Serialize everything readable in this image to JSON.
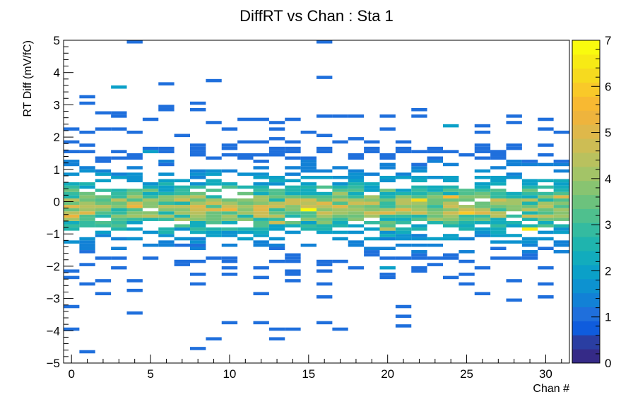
{
  "chart_data": {
    "type": "heatmap",
    "title": "DiffRT vs Chan : Sta 1",
    "xlabel": "Chan #",
    "ylabel": "RT Diff (mV/fC)",
    "xlim": [
      -0.5,
      31.5
    ],
    "ylim": [
      -5,
      5
    ],
    "x_ticks": [
      0,
      5,
      10,
      15,
      20,
      25,
      30
    ],
    "y_ticks": [
      -5,
      -4,
      -3,
      -2,
      -1,
      0,
      1,
      2,
      3,
      4,
      5
    ],
    "z_range": [
      0,
      7
    ],
    "z_ticks": [
      0,
      1,
      2,
      3,
      4,
      5,
      6,
      7
    ],
    "ybin_width": 0.1,
    "grid": false,
    "palette": [
      "#352a87",
      "#2a3ea2",
      "#0f5cdd",
      "#1f6fdc",
      "#1281d6",
      "#0d92d0",
      "#0ba0c8",
      "#12acbd",
      "#1fb4ae",
      "#34bba0",
      "#4fc08e",
      "#6cc27d",
      "#88c471",
      "#a3c467",
      "#b9c15e",
      "#cdbd54",
      "#dfb84a",
      "#eeb43d",
      "#f8b932",
      "#f9c929",
      "#f6da1f",
      "#f7ea15",
      "#f9fb0e"
    ],
    "band_profile": [
      {
        "y": -1.85,
        "w": 0.02
      },
      {
        "y": -1.75,
        "w": 0.03
      },
      {
        "y": -1.65,
        "w": 0.05
      },
      {
        "y": -1.55,
        "w": 0.07
      },
      {
        "y": -1.45,
        "w": 0.09
      },
      {
        "y": -1.35,
        "w": 0.12
      },
      {
        "y": -1.25,
        "w": 0.15
      },
      {
        "y": -1.15,
        "w": 0.2
      },
      {
        "y": -1.05,
        "w": 0.27
      },
      {
        "y": -0.95,
        "w": 0.35
      },
      {
        "y": -0.85,
        "w": 0.45
      },
      {
        "y": -0.75,
        "w": 0.55
      },
      {
        "y": -0.65,
        "w": 0.65
      },
      {
        "y": -0.55,
        "w": 0.75
      },
      {
        "y": -0.45,
        "w": 0.85
      },
      {
        "y": -0.35,
        "w": 0.95
      },
      {
        "y": -0.25,
        "w": 1.0
      },
      {
        "y": -0.15,
        "w": 1.0
      },
      {
        "y": -0.05,
        "w": 0.95
      },
      {
        "y": 0.05,
        "w": 0.9
      },
      {
        "y": 0.15,
        "w": 0.8
      },
      {
        "y": 0.25,
        "w": 0.7
      },
      {
        "y": 0.35,
        "w": 0.6
      },
      {
        "y": 0.45,
        "w": 0.5
      },
      {
        "y": 0.55,
        "w": 0.42
      },
      {
        "y": 0.65,
        "w": 0.34
      },
      {
        "y": 0.75,
        "w": 0.27
      },
      {
        "y": 0.85,
        "w": 0.21
      },
      {
        "y": 0.95,
        "w": 0.16
      },
      {
        "y": 1.05,
        "w": 0.12
      },
      {
        "y": 1.15,
        "w": 0.09
      },
      {
        "y": 1.25,
        "w": 0.07
      },
      {
        "y": 1.35,
        "w": 0.05
      },
      {
        "y": 1.45,
        "w": 0.04
      },
      {
        "y": 1.55,
        "w": 0.03
      },
      {
        "y": 1.65,
        "w": 0.02
      }
    ],
    "peak_cells": [
      {
        "x": 15,
        "y": -0.25,
        "z": 6.9
      },
      {
        "x": 29,
        "y": -0.85,
        "z": 6.5
      },
      {
        "x": 22,
        "y": 0.05,
        "z": 6.2
      },
      {
        "x": 25,
        "y": -0.35,
        "z": 5.8
      },
      {
        "x": 24,
        "y": 0.15,
        "z": 5.6
      },
      {
        "x": 0,
        "y": -0.45,
        "z": 5.4
      },
      {
        "x": 4,
        "y": -0.15,
        "z": 5.2
      },
      {
        "x": 31,
        "y": 0.15,
        "z": 5.1
      },
      {
        "x": 8,
        "y": -0.15,
        "z": 5.0
      },
      {
        "x": 19,
        "y": -0.35,
        "z": 4.8
      },
      {
        "x": 13,
        "y": -0.65,
        "z": 4.6
      },
      {
        "x": 3,
        "y": 0.05,
        "z": 4.5
      },
      {
        "x": 27,
        "y": -0.35,
        "z": 4.4
      },
      {
        "x": 20,
        "y": -0.85,
        "z": 4.3
      },
      {
        "x": 17,
        "y": 0.25,
        "z": 4.2
      }
    ],
    "sparse_cells": [
      {
        "x": 4,
        "y": 4.95,
        "z": 1
      },
      {
        "x": 16,
        "y": 4.95,
        "z": 1
      },
      {
        "x": 16,
        "y": 3.85,
        "z": 1
      },
      {
        "x": 9,
        "y": 3.75,
        "z": 1
      },
      {
        "x": 6,
        "y": 3.65,
        "z": 1
      },
      {
        "x": 3,
        "y": 3.55,
        "z": 2
      },
      {
        "x": 1,
        "y": 3.25,
        "z": 1
      },
      {
        "x": 1,
        "y": 3.05,
        "z": 1
      },
      {
        "x": 8,
        "y": 3.05,
        "z": 1
      },
      {
        "x": 6,
        "y": 2.95,
        "z": 1
      },
      {
        "x": 6,
        "y": 2.85,
        "z": 1
      },
      {
        "x": 8,
        "y": 2.85,
        "z": 1
      },
      {
        "x": 22,
        "y": 2.85,
        "z": 1
      },
      {
        "x": 2,
        "y": 2.75,
        "z": 1
      },
      {
        "x": 3,
        "y": 2.75,
        "z": 1
      },
      {
        "x": 3,
        "y": 2.65,
        "z": 1
      },
      {
        "x": 16,
        "y": 2.65,
        "z": 1
      },
      {
        "x": 17,
        "y": 2.65,
        "z": 1
      },
      {
        "x": 18,
        "y": 2.65,
        "z": 1
      },
      {
        "x": 20,
        "y": 2.65,
        "z": 1
      },
      {
        "x": 22,
        "y": 2.65,
        "z": 1
      },
      {
        "x": 28,
        "y": 2.65,
        "z": 1
      },
      {
        "x": 5,
        "y": 2.55,
        "z": 1
      },
      {
        "x": 11,
        "y": 2.55,
        "z": 1
      },
      {
        "x": 12,
        "y": 2.55,
        "z": 1
      },
      {
        "x": 14,
        "y": 2.55,
        "z": 1
      },
      {
        "x": 30,
        "y": 2.55,
        "z": 1
      },
      {
        "x": 9,
        "y": 2.45,
        "z": 1
      },
      {
        "x": 13,
        "y": 2.45,
        "z": 1
      },
      {
        "x": 28,
        "y": 2.45,
        "z": 1
      },
      {
        "x": 24,
        "y": 2.35,
        "z": 2
      },
      {
        "x": 26,
        "y": 2.35,
        "z": 1
      },
      {
        "x": 0,
        "y": 2.25,
        "z": 1
      },
      {
        "x": 2,
        "y": 2.25,
        "z": 1
      },
      {
        "x": 3,
        "y": 2.25,
        "z": 1
      },
      {
        "x": 10,
        "y": 2.25,
        "z": 1
      },
      {
        "x": 13,
        "y": 2.25,
        "z": 1
      },
      {
        "x": 20,
        "y": 2.25,
        "z": 1
      },
      {
        "x": 30,
        "y": 2.25,
        "z": 1
      },
      {
        "x": 1,
        "y": 2.15,
        "z": 1
      },
      {
        "x": 4,
        "y": 2.15,
        "z": 1
      },
      {
        "x": 15,
        "y": 2.15,
        "z": 1
      },
      {
        "x": 26,
        "y": 2.15,
        "z": 1
      },
      {
        "x": 31,
        "y": 2.15,
        "z": 1
      },
      {
        "x": 7,
        "y": 2.05,
        "z": 1
      },
      {
        "x": 16,
        "y": 2.05,
        "z": 1
      },
      {
        "x": 13,
        "y": 1.95,
        "z": 1
      },
      {
        "x": 18,
        "y": 1.95,
        "z": 1
      },
      {
        "x": 0,
        "y": 1.85,
        "z": 1
      },
      {
        "x": 11,
        "y": 1.85,
        "z": 1
      },
      {
        "x": 12,
        "y": 1.85,
        "z": 1
      },
      {
        "x": 14,
        "y": 1.85,
        "z": 1
      },
      {
        "x": 17,
        "y": 1.85,
        "z": 1
      },
      {
        "x": 19,
        "y": 1.85,
        "z": 1
      },
      {
        "x": 21,
        "y": 1.85,
        "z": 1
      },
      {
        "x": 1,
        "y": 1.75,
        "z": 1
      },
      {
        "x": 8,
        "y": 1.75,
        "z": 1
      },
      {
        "x": 10,
        "y": 1.75,
        "z": 1
      },
      {
        "x": 26,
        "y": 1.75,
        "z": 1
      },
      {
        "x": 28,
        "y": 1.75,
        "z": 1
      },
      {
        "x": 30,
        "y": 1.75,
        "z": 1
      },
      {
        "x": 10,
        "y": 1.65,
        "z": 1
      },
      {
        "x": 23,
        "y": 1.65,
        "z": 1
      },
      {
        "x": 5,
        "y": 1.55,
        "z": 2
      },
      {
        "x": 0,
        "y": 1.55,
        "z": 1
      },
      {
        "x": 22,
        "y": 1.55,
        "z": 1
      },
      {
        "x": 27,
        "y": 1.55,
        "z": 1
      },
      {
        "x": 31,
        "y": 1.25,
        "z": 1
      },
      {
        "x": 29,
        "y": 1.25,
        "z": 1
      },
      {
        "x": 1,
        "y": -1.95,
        "z": 1
      },
      {
        "x": 7,
        "y": -1.95,
        "z": 1
      },
      {
        "x": 16,
        "y": -1.95,
        "z": 1
      },
      {
        "x": 23,
        "y": -1.95,
        "z": 1
      },
      {
        "x": 3,
        "y": -2.05,
        "z": 1
      },
      {
        "x": 10,
        "y": -2.05,
        "z": 1
      },
      {
        "x": 12,
        "y": -2.05,
        "z": 1
      },
      {
        "x": 18,
        "y": -2.05,
        "z": 1
      },
      {
        "x": 20,
        "y": -2.05,
        "z": 2
      },
      {
        "x": 22,
        "y": -2.05,
        "z": 1
      },
      {
        "x": 26,
        "y": -2.05,
        "z": 1
      },
      {
        "x": 30,
        "y": -2.05,
        "z": 1
      },
      {
        "x": 0,
        "y": -2.15,
        "z": 1
      },
      {
        "x": 14,
        "y": -2.15,
        "z": 1
      },
      {
        "x": 16,
        "y": -2.15,
        "z": 1
      },
      {
        "x": 22,
        "y": -2.15,
        "z": 1
      },
      {
        "x": 8,
        "y": -2.25,
        "z": 1
      },
      {
        "x": 10,
        "y": -2.25,
        "z": 1
      },
      {
        "x": 14,
        "y": -2.25,
        "z": 1
      },
      {
        "x": 20,
        "y": -2.25,
        "z": 1
      },
      {
        "x": 25,
        "y": -2.25,
        "z": 1
      },
      {
        "x": 0,
        "y": -2.35,
        "z": 1
      },
      {
        "x": 12,
        "y": -2.35,
        "z": 1
      },
      {
        "x": 20,
        "y": -2.35,
        "z": 1
      },
      {
        "x": 24,
        "y": -2.35,
        "z": 1
      },
      {
        "x": 2,
        "y": -2.45,
        "z": 1
      },
      {
        "x": 4,
        "y": -2.45,
        "z": 1
      },
      {
        "x": 14,
        "y": -2.45,
        "z": 1
      },
      {
        "x": 28,
        "y": -2.45,
        "z": 1
      },
      {
        "x": 1,
        "y": -2.55,
        "z": 1
      },
      {
        "x": 8,
        "y": -2.55,
        "z": 1
      },
      {
        "x": 16,
        "y": -2.55,
        "z": 1
      },
      {
        "x": 25,
        "y": -2.55,
        "z": 1
      },
      {
        "x": 30,
        "y": -2.55,
        "z": 1
      },
      {
        "x": 4,
        "y": -2.75,
        "z": 1
      },
      {
        "x": 2,
        "y": -2.85,
        "z": 1
      },
      {
        "x": 12,
        "y": -2.85,
        "z": 1
      },
      {
        "x": 26,
        "y": -2.85,
        "z": 1
      },
      {
        "x": 16,
        "y": -2.95,
        "z": 1
      },
      {
        "x": 30,
        "y": -2.95,
        "z": 1
      },
      {
        "x": 28,
        "y": -3.05,
        "z": 1
      },
      {
        "x": 0,
        "y": -3.25,
        "z": 1
      },
      {
        "x": 21,
        "y": -3.25,
        "z": 1
      },
      {
        "x": 4,
        "y": -3.45,
        "z": 1
      },
      {
        "x": 21,
        "y": -3.55,
        "z": 1
      },
      {
        "x": 10,
        "y": -3.75,
        "z": 1
      },
      {
        "x": 12,
        "y": -3.75,
        "z": 1
      },
      {
        "x": 16,
        "y": -3.75,
        "z": 1
      },
      {
        "x": 21,
        "y": -3.85,
        "z": 1
      },
      {
        "x": 0,
        "y": -3.95,
        "z": 1
      },
      {
        "x": 13,
        "y": -3.95,
        "z": 1
      },
      {
        "x": 14,
        "y": -3.95,
        "z": 1
      },
      {
        "x": 17,
        "y": -3.95,
        "z": 1
      },
      {
        "x": 9,
        "y": -4.25,
        "z": 1
      },
      {
        "x": 13,
        "y": -4.25,
        "z": 1
      },
      {
        "x": 8,
        "y": -4.55,
        "z": 1
      },
      {
        "x": 1,
        "y": -4.65,
        "z": 1
      }
    ]
  }
}
